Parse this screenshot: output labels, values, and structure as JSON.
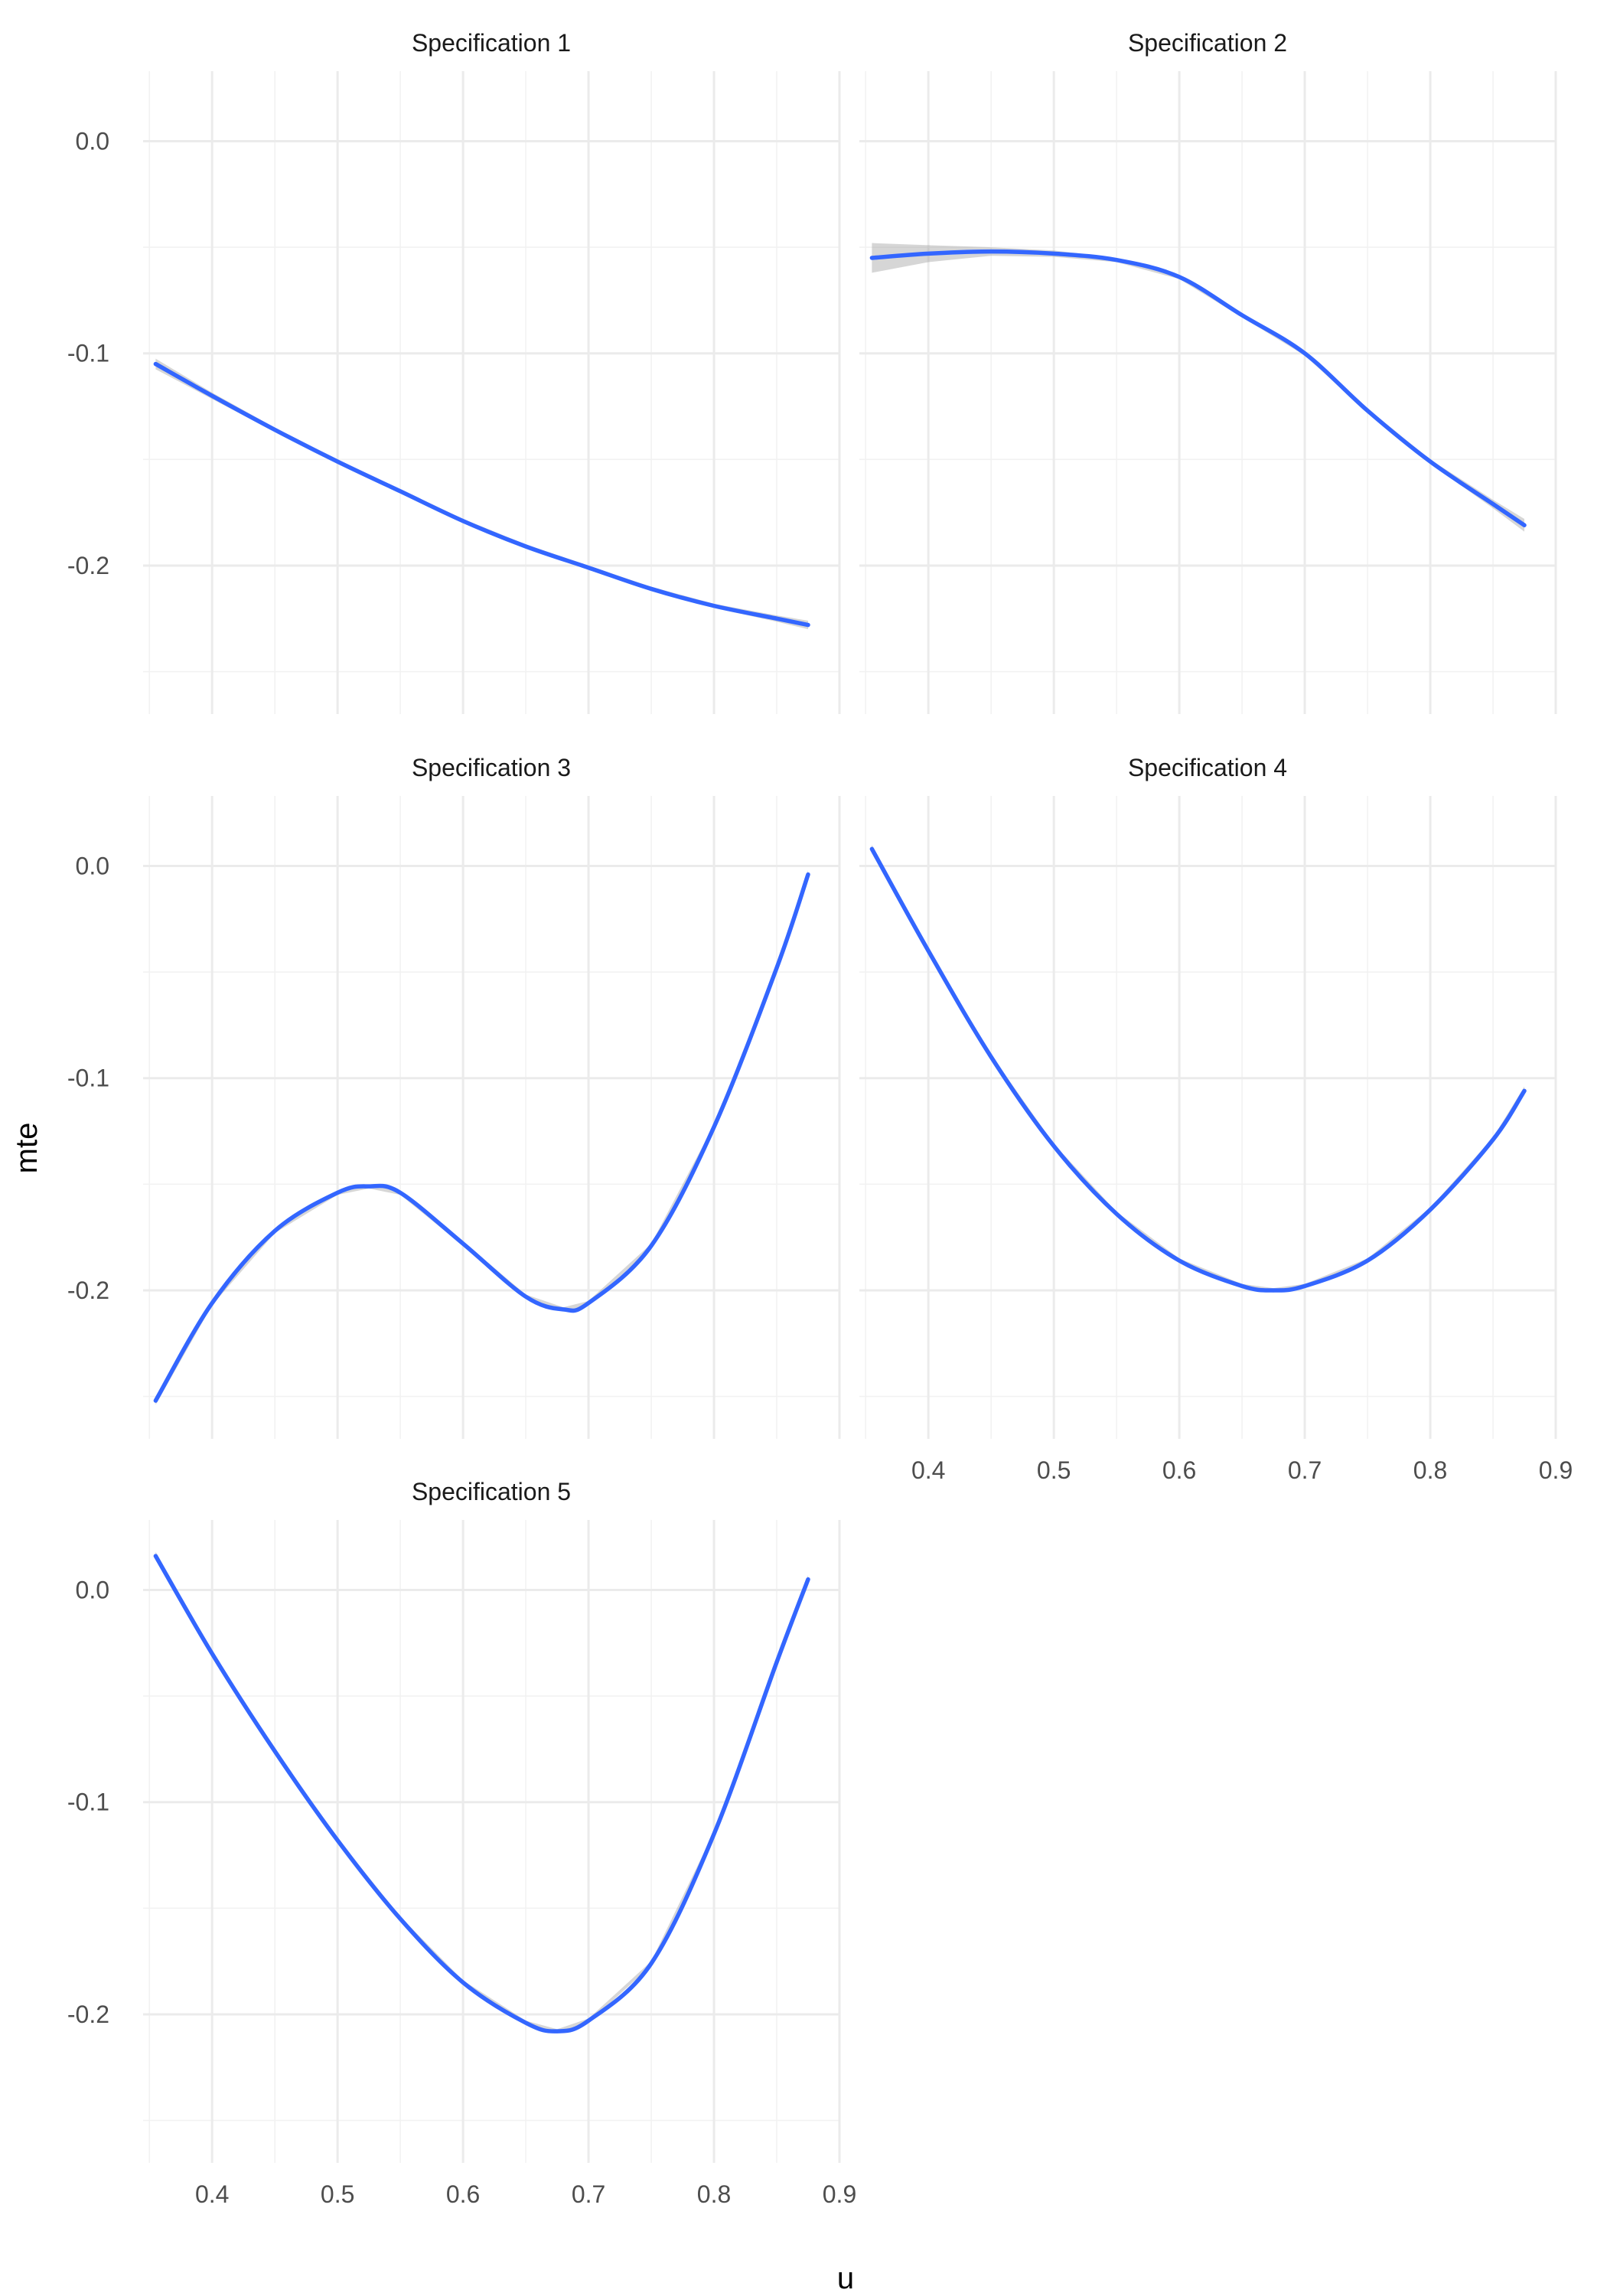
{
  "chart_data": {
    "type": "line",
    "xlabel": "u",
    "ylabel": "mte",
    "xlim": [
      0.345,
      0.9
    ],
    "ylim": [
      -0.27,
      0.033
    ],
    "x_ticks": [
      0.4,
      0.5,
      0.6,
      0.7,
      0.8,
      0.9
    ],
    "x_tick_labels": [
      "0.4",
      "0.5",
      "0.6",
      "0.7",
      "0.8",
      "0.9"
    ],
    "y_ticks": [
      0.0,
      -0.1,
      -0.2
    ],
    "y_tick_labels": [
      "0.0",
      "-0.1",
      "-0.2"
    ],
    "grid": true,
    "colors": {
      "line": "#3366FF",
      "band": "#999999",
      "grid": "#EBEBEB"
    },
    "panels": [
      {
        "title": "Specification 1",
        "x": [
          0.355,
          0.4,
          0.45,
          0.5,
          0.55,
          0.6,
          0.65,
          0.7,
          0.75,
          0.8,
          0.85,
          0.875
        ],
        "y": [
          -0.105,
          -0.12,
          -0.136,
          -0.151,
          -0.165,
          -0.179,
          -0.191,
          -0.201,
          -0.211,
          -0.219,
          -0.225,
          -0.228
        ],
        "se": [
          0.0025,
          0.0015,
          0.001,
          0.001,
          0.001,
          0.001,
          0.001,
          0.001,
          0.001,
          0.001,
          0.0015,
          0.002
        ]
      },
      {
        "title": "Specification 2",
        "x": [
          0.355,
          0.4,
          0.45,
          0.5,
          0.55,
          0.6,
          0.65,
          0.7,
          0.75,
          0.8,
          0.85,
          0.875
        ],
        "y": [
          -0.055,
          -0.053,
          -0.052,
          -0.053,
          -0.056,
          -0.064,
          -0.082,
          -0.1,
          -0.127,
          -0.151,
          -0.171,
          -0.181
        ],
        "se": [
          0.007,
          0.004,
          0.002,
          0.0015,
          0.001,
          0.001,
          0.001,
          0.001,
          0.001,
          0.001,
          0.002,
          0.003
        ]
      },
      {
        "title": "Specification 3",
        "x": [
          0.355,
          0.4,
          0.45,
          0.5,
          0.525,
          0.55,
          0.6,
          0.65,
          0.68,
          0.7,
          0.75,
          0.8,
          0.85,
          0.875
        ],
        "y": [
          -0.252,
          -0.206,
          -0.172,
          -0.154,
          -0.151,
          -0.154,
          -0.178,
          -0.203,
          -0.209,
          -0.206,
          -0.179,
          -0.123,
          -0.048,
          -0.004
        ],
        "se": [
          0.002,
          0.001,
          0.001,
          0.001,
          0.001,
          0.001,
          0.001,
          0.001,
          0.001,
          0.001,
          0.001,
          0.001,
          0.001,
          0.002
        ]
      },
      {
        "title": "Specification 4",
        "x": [
          0.355,
          0.4,
          0.45,
          0.5,
          0.55,
          0.6,
          0.65,
          0.675,
          0.7,
          0.75,
          0.8,
          0.85,
          0.875
        ],
        "y": [
          0.008,
          -0.04,
          -0.09,
          -0.132,
          -0.164,
          -0.186,
          -0.198,
          -0.2,
          -0.198,
          -0.186,
          -0.162,
          -0.129,
          -0.106
        ],
        "se": [
          0.002,
          0.001,
          0.001,
          0.001,
          0.001,
          0.001,
          0.001,
          0.001,
          0.001,
          0.001,
          0.001,
          0.001,
          0.002
        ]
      },
      {
        "title": "Specification 5",
        "x": [
          0.355,
          0.4,
          0.45,
          0.5,
          0.55,
          0.6,
          0.65,
          0.675,
          0.7,
          0.75,
          0.8,
          0.85,
          0.875
        ],
        "y": [
          0.016,
          -0.03,
          -0.076,
          -0.118,
          -0.155,
          -0.185,
          -0.204,
          -0.208,
          -0.203,
          -0.176,
          -0.115,
          -0.034,
          0.005
        ],
        "se": [
          0.002,
          0.001,
          0.001,
          0.001,
          0.001,
          0.001,
          0.001,
          0.001,
          0.001,
          0.001,
          0.001,
          0.001,
          0.002
        ]
      }
    ]
  }
}
